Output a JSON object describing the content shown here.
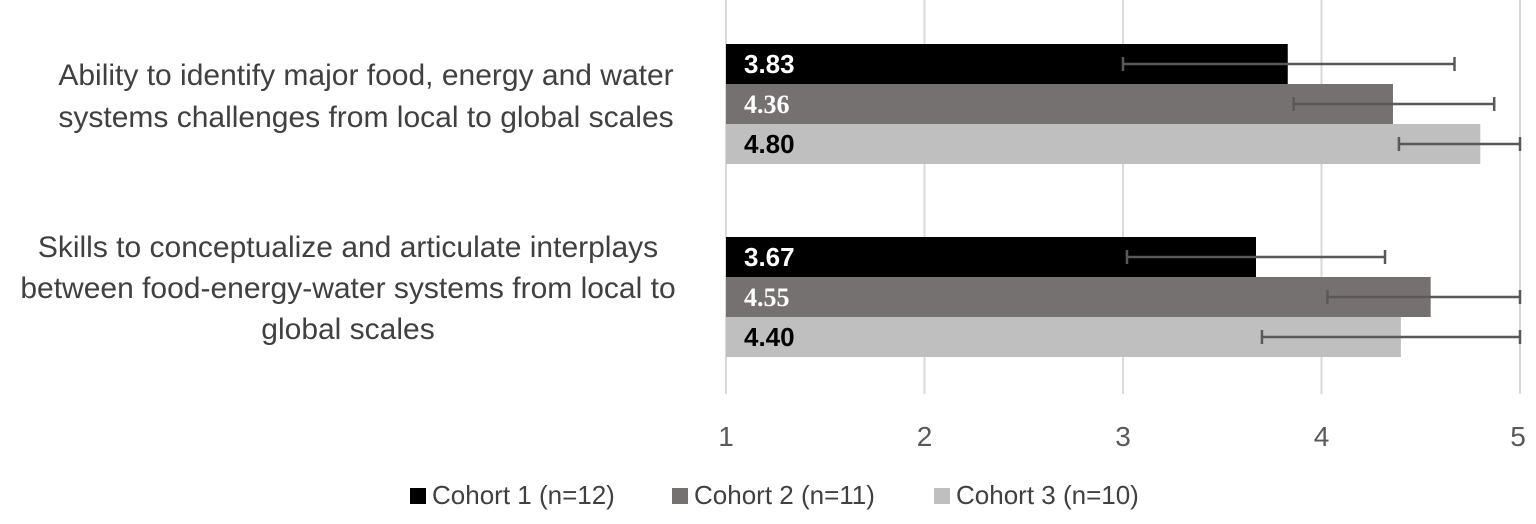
{
  "chart_data": {
    "type": "bar",
    "orientation": "horizontal",
    "title": "",
    "xlabel": "",
    "ylabel": "",
    "xlim": [
      1,
      5
    ],
    "x_ticks": [
      "1",
      "2",
      "3",
      "4",
      "5"
    ],
    "grid": "vertical",
    "legend_position": "bottom",
    "categories": [
      [
        "Ability to identify major food, energy and water",
        "systems challenges from local to global scales"
      ],
      [
        "Skills to conceptualize and articulate interplays",
        "between food-energy-water systems from local to",
        "global scales"
      ]
    ],
    "series": [
      {
        "name": "Cohort 1 (n=12)",
        "color": "#000000",
        "label_color": "#ffffff",
        "values": [
          3.83,
          3.67
        ],
        "value_labels": [
          "3.83",
          "3.67"
        ],
        "error_low": [
          3.0,
          3.02
        ],
        "error_high": [
          4.67,
          4.32
        ]
      },
      {
        "name": "Cohort 2 (n=11)",
        "color": "#767171",
        "label_color": "#ffffff",
        "values": [
          4.36,
          4.55
        ],
        "value_labels": [
          "4.36",
          "4.55"
        ],
        "error_low": [
          3.86,
          4.03
        ],
        "error_high": [
          4.87,
          5.0
        ]
      },
      {
        "name": "Cohort 3 (n=10)",
        "color": "#bfbfbf",
        "label_color": "#000000",
        "values": [
          4.8,
          4.4
        ],
        "value_labels": [
          "4.80",
          "4.40"
        ],
        "error_low": [
          4.39,
          3.7
        ],
        "error_high": [
          5.0,
          5.0
        ]
      }
    ],
    "gridline_color": "#d9d9d9",
    "error_bar_color": "#595959"
  }
}
